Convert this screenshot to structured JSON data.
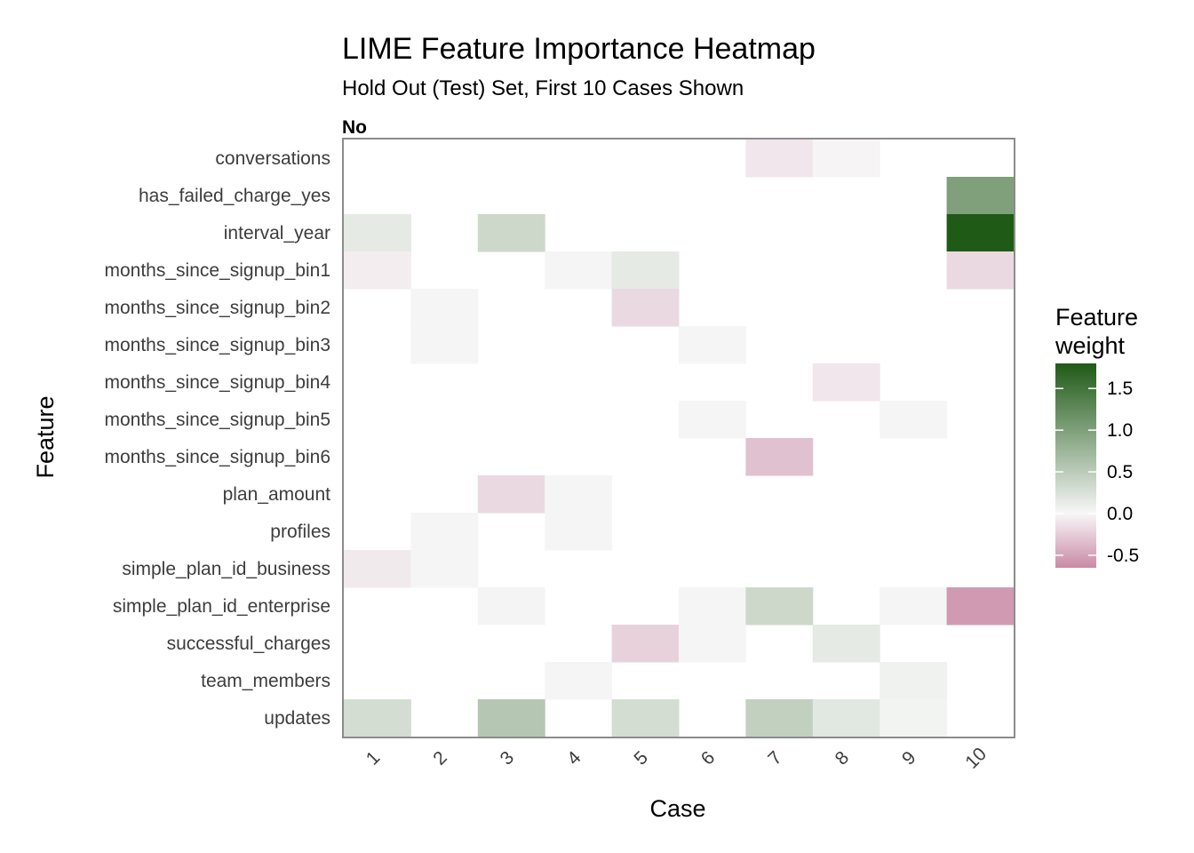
{
  "chart_data": {
    "type": "heatmap",
    "title": "LIME Feature Importance Heatmap",
    "subtitle": "Hold Out (Test) Set, First 10 Cases Shown",
    "facet_label": "No",
    "xlabel": "Case",
    "ylabel": "Feature",
    "x_categories": [
      "1",
      "2",
      "3",
      "4",
      "5",
      "6",
      "7",
      "8",
      "9",
      "10"
    ],
    "y_categories": [
      "conversations",
      "has_failed_charge_yes",
      "interval_year",
      "months_since_signup_bin1",
      "months_since_signup_bin2",
      "months_since_signup_bin3",
      "months_since_signup_bin4",
      "months_since_signup_bin5",
      "months_since_signup_bin6",
      "plan_amount",
      "profiles",
      "simple_plan_id_business",
      "simple_plan_id_enterprise",
      "successful_charges",
      "team_members",
      "updates"
    ],
    "values": [
      [
        null,
        null,
        null,
        null,
        null,
        null,
        -0.1,
        -0.02,
        null,
        null
      ],
      [
        null,
        null,
        null,
        null,
        null,
        null,
        null,
        null,
        null,
        1.0
      ],
      [
        0.15,
        null,
        0.35,
        null,
        null,
        null,
        null,
        null,
        null,
        1.8
      ],
      [
        -0.06,
        null,
        null,
        0.02,
        0.15,
        null,
        null,
        null,
        null,
        -0.18
      ],
      [
        null,
        0.02,
        null,
        null,
        -0.18,
        null,
        null,
        null,
        null,
        null
      ],
      [
        null,
        0.02,
        null,
        null,
        null,
        0.02,
        null,
        null,
        null,
        null
      ],
      [
        null,
        null,
        null,
        null,
        null,
        null,
        null,
        -0.1,
        null,
        null
      ],
      [
        null,
        null,
        null,
        null,
        null,
        0.02,
        null,
        null,
        0.02,
        null
      ],
      [
        null,
        null,
        null,
        null,
        null,
        null,
        -0.32,
        null,
        null,
        null
      ],
      [
        null,
        null,
        -0.18,
        0.02,
        null,
        null,
        null,
        null,
        null,
        null
      ],
      [
        null,
        0.02,
        null,
        0.02,
        null,
        null,
        null,
        null,
        null,
        null
      ],
      [
        -0.08,
        0.02,
        null,
        null,
        null,
        null,
        null,
        null,
        null,
        null
      ],
      [
        null,
        null,
        0.03,
        null,
        null,
        0.02,
        0.35,
        null,
        0.02,
        -0.55
      ],
      [
        null,
        null,
        null,
        null,
        -0.22,
        0.02,
        null,
        0.15,
        null,
        null
      ],
      [
        null,
        null,
        null,
        0.02,
        null,
        null,
        null,
        null,
        0.06,
        null
      ],
      [
        0.3,
        null,
        0.55,
        null,
        0.3,
        null,
        0.45,
        0.18,
        0.04,
        null
      ]
    ],
    "colorbar": {
      "title": "Feature\nweight",
      "min": -0.65,
      "max": 1.8,
      "ticks": [
        -0.5,
        0.0,
        0.5,
        1.0,
        1.5
      ],
      "tick_labels": [
        "-0.5",
        "0.0",
        "0.5",
        "1.0",
        "1.5"
      ],
      "low_color": "#c98aa6",
      "mid_color": "#f7f7f7",
      "high_color": "#1f5a17"
    }
  }
}
